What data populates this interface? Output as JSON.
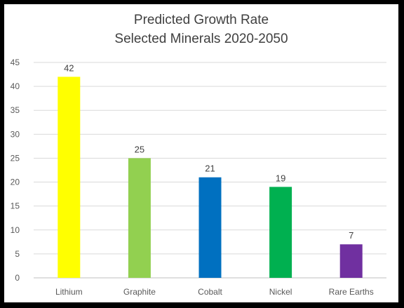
{
  "chart_data": {
    "type": "bar",
    "title": [
      "Predicted Growth Rate",
      "Selected Minerals 2020-2050"
    ],
    "xlabel": "",
    "ylabel": "",
    "categories": [
      "Lithium",
      "Graphite",
      "Cobalt",
      "Nickel",
      "Rare Earths"
    ],
    "values": [
      42,
      25,
      21,
      19,
      7
    ],
    "data_labels": [
      "42",
      "25",
      "21",
      "19",
      "7"
    ],
    "bar_colors": [
      "#FFFF00",
      "#92D050",
      "#0070C0",
      "#00B050",
      "#7030A0"
    ],
    "ylim": [
      0,
      45
    ],
    "yticks": [
      0,
      5,
      10,
      15,
      20,
      25,
      30,
      35,
      40,
      45
    ],
    "grid": true,
    "legend": "none"
  }
}
